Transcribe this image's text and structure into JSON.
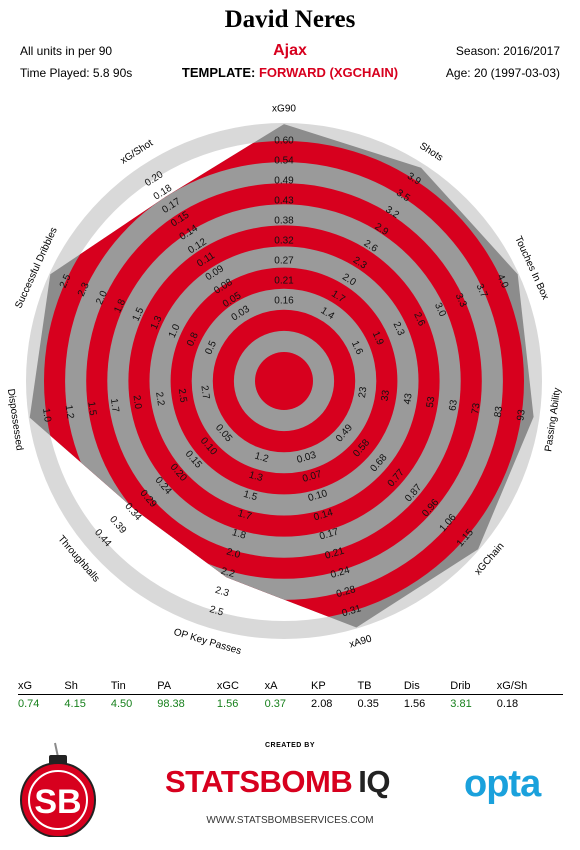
{
  "header": {
    "player": "David Neres",
    "club": "Ajax",
    "units": "All units in per 90",
    "time_played": "Time Played: 5.8 90s",
    "season": "Season: 2016/2017",
    "age": "Age: 20 (1997-03-03)",
    "template_label": "TEMPLATE:",
    "template_value": "FORWARD (XGCHAIN)"
  },
  "chart_data": {
    "type": "radar",
    "axes": [
      {
        "label": "xG90",
        "ticks": [
          "0.16",
          "0.21",
          "0.27",
          "0.32",
          "0.38",
          "0.43",
          "0.49",
          "0.54",
          "0.60"
        ],
        "value": 0.74,
        "max": 0.6
      },
      {
        "label": "Shots",
        "ticks": [
          "1.4",
          "1.7",
          "2.0",
          "2.3",
          "2.6",
          "2.9",
          "3.2",
          "3.5",
          "3.9"
        ],
        "value": 4.15,
        "max": 3.9
      },
      {
        "label": "Touches In Box",
        "ticks": [
          "1.6",
          "1.9",
          "2.3",
          "2.6",
          "3.0",
          "3.3",
          "3.7",
          "4.0"
        ],
        "value": 4.5,
        "max": 4.0
      },
      {
        "label": "Passing Ability",
        "ticks": [
          "23",
          "33",
          "43",
          "53",
          "63",
          "73",
          "83",
          "93"
        ],
        "value": 98.38,
        "max": 93
      },
      {
        "label": "xGChain",
        "ticks": [
          "0.49",
          "0.58",
          "0.68",
          "0.77",
          "0.87",
          "0.96",
          "1.06",
          "1.15"
        ],
        "value": 1.56,
        "max": 1.15
      },
      {
        "label": "xA90",
        "ticks": [
          "0.03",
          "0.07",
          "0.10",
          "0.14",
          "0.17",
          "0.21",
          "0.24",
          "0.28",
          "0.31"
        ],
        "value": 0.37,
        "max": 0.31
      },
      {
        "label": "OP Key Passes",
        "ticks": [
          "1.2",
          "1.3",
          "1.5",
          "1.7",
          "1.8",
          "2.0",
          "2.2",
          "2.3",
          "2.5"
        ],
        "value": 2.08,
        "max": 2.5
      },
      {
        "label": "Throughballs",
        "ticks": [
          "0.05",
          "0.10",
          "0.15",
          "0.20",
          "0.24",
          "0.29",
          "0.34",
          "0.39",
          "0.44"
        ],
        "value": 0.35,
        "max": 0.44
      },
      {
        "label": "Dispossessed",
        "ticks": [
          "2.7",
          "2.5",
          "2.2",
          "2.0",
          "1.7",
          "1.5",
          "1.2",
          "1.0"
        ],
        "value": 1.56,
        "max": 1.0
      },
      {
        "label": "Successful Dribbles",
        "ticks": [
          "0.5",
          "0.8",
          "1.0",
          "1.3",
          "1.5",
          "1.8",
          "2.0",
          "2.3",
          "2.5"
        ],
        "value": 3.81,
        "max": 2.5
      },
      {
        "label": "xG/Shot",
        "ticks": [
          "0.03",
          "0.05",
          "0.08",
          "0.09",
          "0.11",
          "0.12",
          "0.14",
          "0.15",
          "0.17",
          "0.18",
          "0.20"
        ],
        "value": 0.18,
        "max": 0.2
      }
    ],
    "colors": {
      "fill": "#d7001e",
      "band": "#9a9a9a",
      "ring": "#d9d9d9",
      "player_area": "#8c8c8c"
    }
  },
  "table": {
    "headers": [
      "xG",
      "Sh",
      "Tin",
      "PA",
      "xGC",
      "xA",
      "KP",
      "TB",
      "Dis",
      "Drib",
      "xG/Sh"
    ],
    "values": [
      "0.74",
      "4.15",
      "4.50",
      "98.38",
      "1.56",
      "0.37",
      "2.08",
      "0.35",
      "1.56",
      "3.81",
      "0.18"
    ],
    "highlight": [
      true,
      true,
      true,
      true,
      true,
      true,
      false,
      false,
      false,
      true,
      false
    ]
  },
  "footer": {
    "created_by": "CREATED BY",
    "sb_logo": "SB",
    "brand_a": "STATSBOMB",
    "brand_b": "IQ",
    "site": "WWW.STATSBOMBSERVICES.COM",
    "opta": "opta"
  }
}
